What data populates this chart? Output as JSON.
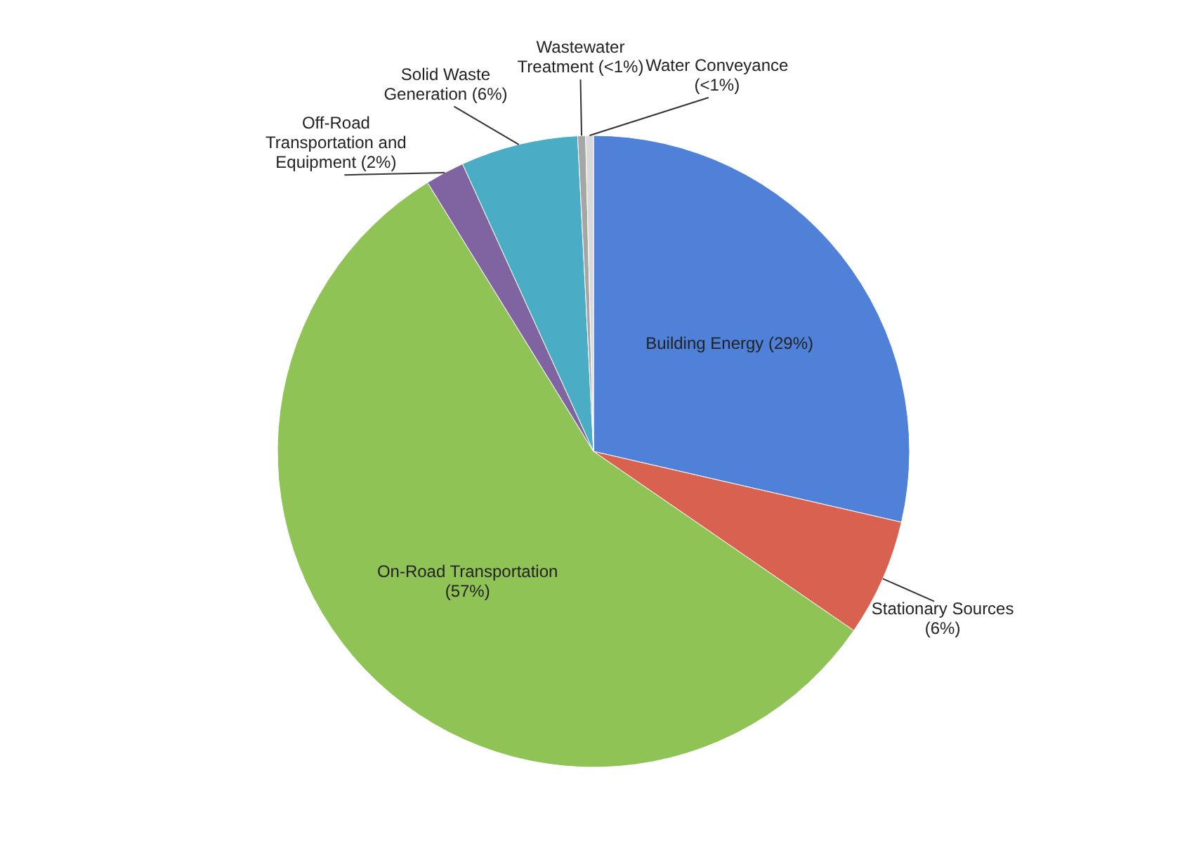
{
  "chart_data": {
    "type": "pie",
    "categories": [
      "Building Energy (29%)",
      "Stationary Sources (6%)",
      "On-Road Transportation (57%)",
      "Off-Road Transportation and Equipment (2%)",
      "Solid Waste Generation (6%)",
      "Wastewater Treatment (<1%)",
      "Water Conveyance (<1%)"
    ],
    "values": [
      28.6,
      6,
      56.6,
      2,
      6,
      0.4,
      0.4
    ],
    "colors": [
      "#4f81d9",
      "#d9614f",
      "#8fc356",
      "#8064a2",
      "#4bacc6",
      "#a6a6a6",
      "#d9d9d9"
    ]
  }
}
